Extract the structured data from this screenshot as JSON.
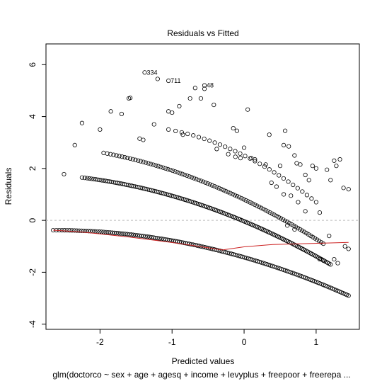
{
  "chart_data": {
    "type": "scatter",
    "title": "Residuals vs Fitted",
    "xlabel": "Predicted values",
    "ylabel": "Residuals",
    "caption": "glm(doctorco ~ sex + age + agesq + income + levyplus + freepoor + freerepa ...",
    "xlim": [
      -2.75,
      1.6
    ],
    "ylim": [
      -4.2,
      6.8
    ],
    "x_ticks": [
      -2,
      -1,
      0,
      1
    ],
    "x_tick_labels": [
      "-2",
      "-1",
      "0",
      "1"
    ],
    "y_ticks": [
      -4,
      -2,
      0,
      2,
      4,
      6
    ],
    "y_tick_labels": [
      "-4",
      "-2",
      "0",
      "2",
      "4",
      "6"
    ],
    "reference_line": {
      "y": 0,
      "style": "dotted",
      "color": "#bbbbbb"
    },
    "point_color": "#000000",
    "curves": [
      {
        "kind": "band",
        "note": "residual band for response 0",
        "x_start": -2.65,
        "y_start": -0.38,
        "x_mid": -0.3,
        "y_mid": -1.2,
        "x_end": 1.45,
        "y_end": -2.9,
        "n_points": 150
      },
      {
        "kind": "band",
        "note": "residual band for response 1",
        "x_start": -2.25,
        "y_start": 1.65,
        "x_mid": -0.5,
        "y_mid": 0.5,
        "x_end": 1.2,
        "y_end": -1.7,
        "n_points": 150
      },
      {
        "kind": "band",
        "note": "residual band for response 2",
        "x_start": -1.95,
        "y_start": 2.6,
        "x_mid": -0.4,
        "y_mid": 1.3,
        "x_end": 1.1,
        "y_end": -0.9,
        "n_points": 95
      },
      {
        "kind": "band",
        "note": "residual band for response 3",
        "x_start": -1.05,
        "y_start": 3.5,
        "x_mid": 0.0,
        "y_mid": 2.5,
        "x_end": 1.0,
        "y_end": 0.7,
        "n_points": 30
      }
    ],
    "scattered_points": [
      [
        -2.5,
        1.78
      ],
      [
        -2.35,
        2.9
      ],
      [
        -2.25,
        3.75
      ],
      [
        -2.0,
        3.5
      ],
      [
        -1.85,
        4.2
      ],
      [
        -1.7,
        4.1
      ],
      [
        -1.6,
        4.7
      ],
      [
        -1.58,
        4.72
      ],
      [
        -1.45,
        3.15
      ],
      [
        -1.4,
        3.1
      ],
      [
        -1.25,
        3.7
      ],
      [
        -1.2,
        5.45
      ],
      [
        -1.05,
        4.2
      ],
      [
        -1.0,
        4.15
      ],
      [
        -0.9,
        4.4
      ],
      [
        -0.85,
        3.3
      ],
      [
        -0.75,
        4.7
      ],
      [
        -0.68,
        5.1
      ],
      [
        -0.6,
        4.7
      ],
      [
        -0.55,
        5.07
      ],
      [
        -0.42,
        4.45
      ],
      [
        -0.38,
        2.75
      ],
      [
        -0.22,
        2.55
      ],
      [
        -0.12,
        2.45
      ],
      [
        -0.05,
        2.4
      ],
      [
        0.05,
        4.27
      ],
      [
        0.0,
        2.8
      ],
      [
        -0.15,
        3.55
      ],
      [
        -0.1,
        3.45
      ],
      [
        0.1,
        2.4
      ],
      [
        0.15,
        2.35
      ],
      [
        0.3,
        2.15
      ],
      [
        0.35,
        3.3
      ],
      [
        0.5,
        2.1
      ],
      [
        0.55,
        2.9
      ],
      [
        0.57,
        3.45
      ],
      [
        0.62,
        2.85
      ],
      [
        0.7,
        2.5
      ],
      [
        0.73,
        2.2
      ],
      [
        0.78,
        2.15
      ],
      [
        0.85,
        1.75
      ],
      [
        0.9,
        1.55
      ],
      [
        0.95,
        2.1
      ],
      [
        1.0,
        2.0
      ],
      [
        1.05,
        0.3
      ],
      [
        1.15,
        1.95
      ],
      [
        1.2,
        1.55
      ],
      [
        1.25,
        2.3
      ],
      [
        1.28,
        2.1
      ],
      [
        1.33,
        2.35
      ],
      [
        1.38,
        1.25
      ],
      [
        1.45,
        1.2
      ],
      [
        0.38,
        1.45
      ],
      [
        0.45,
        1.3
      ],
      [
        0.55,
        1.0
      ],
      [
        0.65,
        0.95
      ],
      [
        0.75,
        0.7
      ],
      [
        0.85,
        0.35
      ],
      [
        1.18,
        -0.6
      ],
      [
        1.25,
        -1.5
      ],
      [
        1.4,
        -1.0
      ],
      [
        1.45,
        -1.1
      ],
      [
        1.05,
        -1.5
      ],
      [
        1.1,
        -1.55
      ],
      [
        1.3,
        -1.65
      ],
      [
        0.6,
        -0.2
      ],
      [
        0.7,
        -0.35
      ]
    ],
    "labeled_points": [
      {
        "x": -1.38,
        "y": 5.7,
        "label": "334"
      },
      {
        "x": -1.05,
        "y": 5.38,
        "label": "711"
      },
      {
        "x": -0.55,
        "y": 5.2,
        "label": "48"
      }
    ],
    "smooth_line": {
      "color": "#cc2222",
      "x": [
        -2.65,
        -2.3,
        -2.0,
        -1.6,
        -1.2,
        -0.8,
        -0.4,
        -0.3,
        0.0,
        0.4,
        0.8,
        1.2,
        1.45
      ],
      "y": [
        -0.38,
        -0.44,
        -0.52,
        -0.64,
        -0.78,
        -0.93,
        -1.1,
        -1.14,
        -1.02,
        -0.93,
        -0.9,
        -0.87,
        -0.85
      ]
    }
  }
}
